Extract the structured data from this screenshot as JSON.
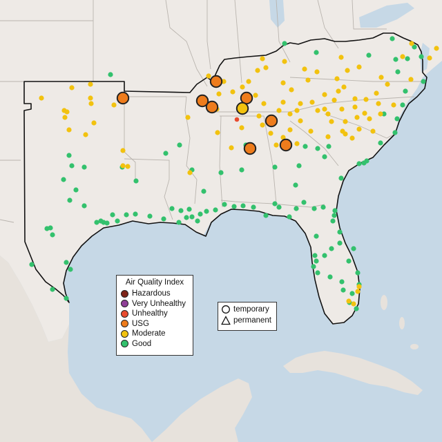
{
  "legend": {
    "title": "Air Quality Index",
    "categories": [
      {
        "label": "Hazardous",
        "color": "#7e2418"
      },
      {
        "label": "Very Unhealthy",
        "color": "#8f3f97"
      },
      {
        "label": "Unhealthy",
        "color": "#e84b2f"
      },
      {
        "label": "USG",
        "color": "#ee7c1c"
      },
      {
        "label": "Moderate",
        "color": "#f2c20f"
      },
      {
        "label": "Good",
        "color": "#33c16d"
      }
    ]
  },
  "monitor_types": {
    "temporary": "temporary",
    "permanent": "permanent"
  },
  "colors": {
    "water": "#c6d8e6",
    "land": "#eeeae6",
    "ocean_label_free": true
  }
}
